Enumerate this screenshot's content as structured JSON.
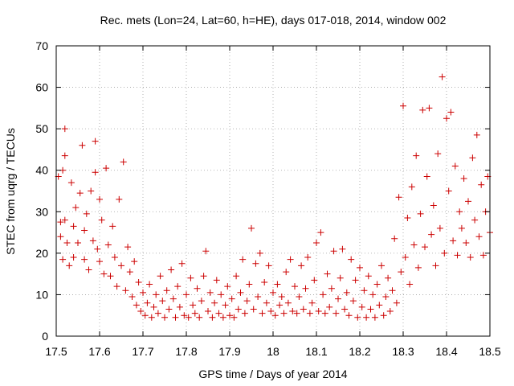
{
  "chart_data": {
    "type": "scatter",
    "title": "Rec. mets (Lon=24, Lat=60, h=HE), days 017-018, 2014, window 002",
    "xlabel": "GPS time / Days of year 2014",
    "ylabel": "STEC from uqrg / TECUs",
    "xlim": [
      17.5,
      18.5
    ],
    "ylim": [
      0,
      70
    ],
    "xticks": [
      "17.5",
      "17.6",
      "17.7",
      "17.8",
      "17.9",
      "18",
      "18.1",
      "18.2",
      "18.3",
      "18.4",
      "18.5"
    ],
    "yticks": [
      "0",
      "10",
      "20",
      "30",
      "40",
      "50",
      "60",
      "70"
    ],
    "grid": true,
    "marker": "+",
    "marker_color": "#cc0000",
    "series": [
      {
        "points": [
          [
            17.505,
            38.5
          ],
          [
            17.51,
            24.0
          ],
          [
            17.515,
            18.5
          ],
          [
            17.51,
            27.5
          ],
          [
            17.515,
            40.0
          ],
          [
            17.52,
            50.0
          ],
          [
            17.52,
            43.5
          ],
          [
            17.52,
            28.0
          ],
          [
            17.525,
            22.5
          ],
          [
            17.53,
            17.0
          ],
          [
            17.535,
            37.0
          ],
          [
            17.54,
            26.5
          ],
          [
            17.54,
            19.0
          ],
          [
            17.545,
            31.0
          ],
          [
            17.55,
            22.5
          ],
          [
            17.555,
            34.5
          ],
          [
            17.56,
            46.0
          ],
          [
            17.565,
            25.5
          ],
          [
            17.565,
            18.5
          ],
          [
            17.57,
            29.5
          ],
          [
            17.575,
            16.0
          ],
          [
            17.58,
            35.0
          ],
          [
            17.585,
            23.0
          ],
          [
            17.59,
            47.0
          ],
          [
            17.59,
            39.5
          ],
          [
            17.595,
            21.0
          ],
          [
            17.6,
            33.0
          ],
          [
            17.6,
            18.0
          ],
          [
            17.605,
            28.0
          ],
          [
            17.61,
            15.0
          ],
          [
            17.615,
            40.5
          ],
          [
            17.62,
            22.0
          ],
          [
            17.625,
            14.5
          ],
          [
            17.63,
            26.5
          ],
          [
            17.635,
            19.0
          ],
          [
            17.64,
            12.0
          ],
          [
            17.645,
            33.0
          ],
          [
            17.65,
            17.0
          ],
          [
            17.655,
            42.0
          ],
          [
            17.66,
            11.0
          ],
          [
            17.665,
            21.5
          ],
          [
            17.67,
            15.5
          ],
          [
            17.675,
            9.5
          ],
          [
            17.68,
            18.0
          ],
          [
            17.685,
            7.5
          ],
          [
            17.69,
            13.0
          ],
          [
            17.695,
            6.0
          ],
          [
            17.7,
            10.5
          ],
          [
            17.705,
            5.0
          ],
          [
            17.71,
            8.0
          ],
          [
            17.715,
            12.5
          ],
          [
            17.72,
            4.5
          ],
          [
            17.725,
            7.0
          ],
          [
            17.73,
            10.0
          ],
          [
            17.735,
            5.5
          ],
          [
            17.74,
            14.5
          ],
          [
            17.745,
            8.5
          ],
          [
            17.75,
            4.5
          ],
          [
            17.755,
            11.0
          ],
          [
            17.76,
            6.5
          ],
          [
            17.765,
            16.0
          ],
          [
            17.77,
            9.0
          ],
          [
            17.775,
            4.5
          ],
          [
            17.78,
            12.0
          ],
          [
            17.785,
            7.0
          ],
          [
            17.79,
            17.5
          ],
          [
            17.795,
            5.0
          ],
          [
            17.8,
            10.0
          ],
          [
            17.805,
            4.5
          ],
          [
            17.81,
            14.0
          ],
          [
            17.815,
            7.5
          ],
          [
            17.82,
            5.5
          ],
          [
            17.825,
            11.5
          ],
          [
            17.83,
            4.5
          ],
          [
            17.835,
            8.5
          ],
          [
            17.84,
            14.5
          ],
          [
            17.845,
            20.5
          ],
          [
            17.85,
            6.0
          ],
          [
            17.855,
            10.5
          ],
          [
            17.86,
            4.5
          ],
          [
            17.865,
            8.0
          ],
          [
            17.87,
            13.5
          ],
          [
            17.875,
            5.5
          ],
          [
            17.88,
            10.0
          ],
          [
            17.885,
            4.5
          ],
          [
            17.89,
            7.5
          ],
          [
            17.895,
            12.0
          ],
          [
            17.9,
            5.0
          ],
          [
            17.905,
            9.0
          ],
          [
            17.91,
            4.5
          ],
          [
            17.915,
            14.5
          ],
          [
            17.92,
            6.5
          ],
          [
            17.925,
            10.5
          ],
          [
            17.93,
            18.5
          ],
          [
            17.935,
            5.5
          ],
          [
            17.94,
            8.5
          ],
          [
            17.945,
            12.5
          ],
          [
            17.95,
            26.0
          ],
          [
            17.955,
            6.5
          ],
          [
            17.96,
            17.5
          ],
          [
            17.965,
            9.5
          ],
          [
            17.97,
            20.0
          ],
          [
            17.975,
            5.5
          ],
          [
            17.98,
            13.0
          ],
          [
            17.985,
            8.0
          ],
          [
            17.99,
            17.0
          ],
          [
            17.995,
            6.0
          ],
          [
            18.0,
            10.5
          ],
          [
            18.005,
            5.0
          ],
          [
            18.01,
            12.5
          ],
          [
            18.015,
            7.5
          ],
          [
            18.02,
            9.5
          ],
          [
            18.025,
            5.5
          ],
          [
            18.03,
            15.5
          ],
          [
            18.035,
            8.0
          ],
          [
            18.04,
            18.5
          ],
          [
            18.045,
            6.0
          ],
          [
            18.05,
            12.0
          ],
          [
            18.055,
            5.5
          ],
          [
            18.06,
            9.5
          ],
          [
            18.065,
            17.0
          ],
          [
            18.07,
            6.5
          ],
          [
            18.075,
            11.5
          ],
          [
            18.08,
            19.0
          ],
          [
            18.085,
            5.5
          ],
          [
            18.09,
            8.0
          ],
          [
            18.095,
            13.5
          ],
          [
            18.1,
            22.5
          ],
          [
            18.105,
            6.0
          ],
          [
            18.11,
            25.0
          ],
          [
            18.115,
            10.0
          ],
          [
            18.12,
            5.5
          ],
          [
            18.125,
            15.0
          ],
          [
            18.13,
            7.0
          ],
          [
            18.135,
            11.5
          ],
          [
            18.14,
            20.5
          ],
          [
            18.145,
            5.5
          ],
          [
            18.15,
            9.0
          ],
          [
            18.155,
            14.0
          ],
          [
            18.16,
            21.0
          ],
          [
            18.165,
            6.5
          ],
          [
            18.17,
            10.5
          ],
          [
            18.175,
            5.0
          ],
          [
            18.18,
            18.5
          ],
          [
            18.185,
            8.5
          ],
          [
            18.19,
            13.5
          ],
          [
            18.195,
            4.5
          ],
          [
            18.2,
            16.5
          ],
          [
            18.205,
            7.0
          ],
          [
            18.21,
            11.0
          ],
          [
            18.215,
            4.5
          ],
          [
            18.22,
            14.5
          ],
          [
            18.225,
            6.5
          ],
          [
            18.23,
            10.0
          ],
          [
            18.235,
            4.5
          ],
          [
            18.24,
            12.5
          ],
          [
            18.245,
            7.5
          ],
          [
            18.25,
            17.0
          ],
          [
            18.255,
            5.0
          ],
          [
            18.26,
            9.5
          ],
          [
            18.265,
            14.0
          ],
          [
            18.27,
            6.0
          ],
          [
            18.275,
            11.0
          ],
          [
            18.28,
            23.5
          ],
          [
            18.285,
            8.0
          ],
          [
            18.29,
            33.5
          ],
          [
            18.295,
            15.5
          ],
          [
            18.3,
            55.5
          ],
          [
            18.305,
            19.0
          ],
          [
            18.31,
            28.5
          ],
          [
            18.315,
            12.5
          ],
          [
            18.32,
            36.0
          ],
          [
            18.325,
            22.0
          ],
          [
            18.33,
            43.5
          ],
          [
            18.335,
            16.5
          ],
          [
            18.34,
            29.5
          ],
          [
            18.345,
            54.5
          ],
          [
            18.35,
            21.5
          ],
          [
            18.355,
            38.5
          ],
          [
            18.36,
            55.0
          ],
          [
            18.365,
            24.5
          ],
          [
            18.37,
            31.5
          ],
          [
            18.375,
            17.0
          ],
          [
            18.38,
            44.0
          ],
          [
            18.385,
            26.0
          ],
          [
            18.39,
            62.5
          ],
          [
            18.395,
            20.0
          ],
          [
            18.4,
            52.5
          ],
          [
            18.405,
            35.0
          ],
          [
            18.41,
            54.0
          ],
          [
            18.415,
            23.0
          ],
          [
            18.42,
            41.0
          ],
          [
            18.425,
            19.5
          ],
          [
            18.43,
            30.0
          ],
          [
            18.435,
            26.0
          ],
          [
            18.44,
            38.0
          ],
          [
            18.445,
            22.5
          ],
          [
            18.45,
            32.5
          ],
          [
            18.455,
            19.0
          ],
          [
            18.46,
            43.0
          ],
          [
            18.465,
            28.0
          ],
          [
            18.47,
            48.5
          ],
          [
            18.475,
            24.0
          ],
          [
            18.48,
            36.5
          ],
          [
            18.485,
            19.5
          ],
          [
            18.49,
            30.0
          ],
          [
            18.495,
            38.5
          ],
          [
            18.5,
            25.0
          ]
        ]
      }
    ]
  }
}
